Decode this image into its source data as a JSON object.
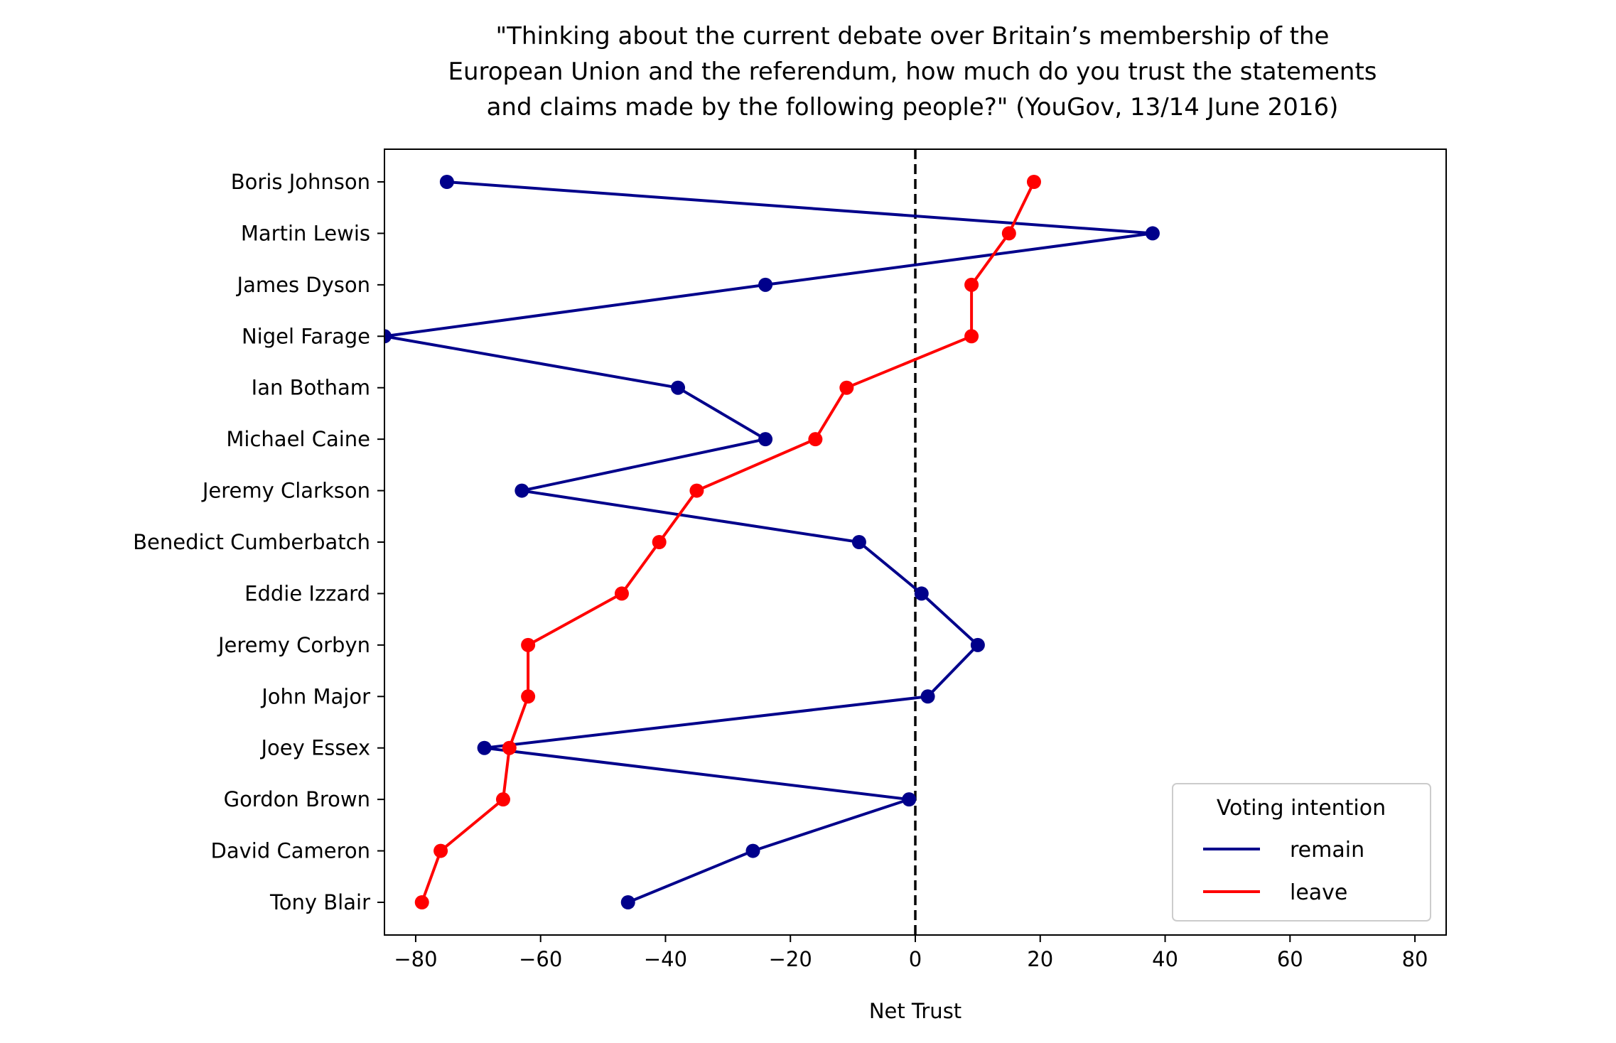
{
  "chart_data": {
    "type": "line",
    "title_lines": [
      "\"Thinking about the current debate over Britain’s membership of the",
      "European Union and the referendum, how much do you trust the statements",
      "and claims made by the following people?\" (YouGov, 13/14 June 2016)"
    ],
    "xlabel": "Net Trust",
    "ylabel": "",
    "xlim": [
      -85,
      85
    ],
    "xticks": [
      -80,
      -60,
      -40,
      -20,
      0,
      20,
      40,
      60,
      80
    ],
    "xtick_labels": [
      "−80",
      "−60",
      "−40",
      "−20",
      "0",
      "20",
      "40",
      "60",
      "80"
    ],
    "categories": [
      "Boris Johnson",
      "Martin Lewis",
      "James Dyson",
      "Nigel Farage",
      "Ian Botham",
      "Michael Caine",
      "Jeremy Clarkson",
      "Benedict Cumberbatch",
      "Eddie Izzard",
      "Jeremy Corbyn",
      "John Major",
      "Joey Essex",
      "Gordon Brown",
      "David Cameron",
      "Tony Blair"
    ],
    "series": [
      {
        "name": "remain",
        "color": "#00008b",
        "values": [
          -75,
          38,
          -24,
          -85,
          -38,
          -24,
          -63,
          -9,
          1,
          10,
          2,
          -69,
          -1,
          -26,
          -46
        ]
      },
      {
        "name": "leave",
        "color": "#ff0000",
        "values": [
          19,
          15,
          9,
          9,
          -11,
          -16,
          -35,
          -41,
          -47,
          -62,
          -62,
          -65,
          -66,
          -76,
          -79
        ]
      }
    ],
    "reference_line": {
      "x": 0,
      "style": "dashed",
      "color": "#000000"
    },
    "legend": {
      "title": "Voting intention",
      "placement": "lower-right"
    },
    "grid": false
  }
}
